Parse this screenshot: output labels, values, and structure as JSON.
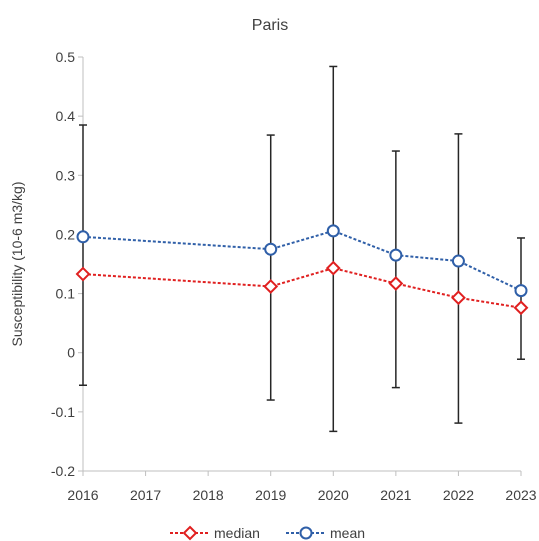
{
  "chart_data": {
    "type": "line",
    "title": "Paris",
    "xlabel": "",
    "ylabel": "Susceptibility (10-6 m3/kg)",
    "x_ticks": [
      "2016",
      "2017",
      "2018",
      "2019",
      "2020",
      "2021",
      "2022",
      "2023"
    ],
    "xlim": [
      2016,
      2023
    ],
    "ylim": [
      -0.2,
      0.5
    ],
    "y_ticks": [
      "-0.2",
      "-0.1",
      "0",
      "0.1",
      "0.2",
      "0.3",
      "0.4",
      "0.5"
    ],
    "grid": false,
    "legend_position": "bottom",
    "series": [
      {
        "name": "median",
        "color": "#e02020",
        "marker": "diamond",
        "line_style": "dashed",
        "points": [
          {
            "x": 2016,
            "y": 0.133
          },
          {
            "x": 2019,
            "y": 0.112
          },
          {
            "x": 2020,
            "y": 0.143
          },
          {
            "x": 2021,
            "y": 0.117
          },
          {
            "x": 2022,
            "y": 0.093
          },
          {
            "x": 2023,
            "y": 0.076
          }
        ]
      },
      {
        "name": "mean",
        "color": "#2f5fa8",
        "marker": "circle",
        "line_style": "dashed",
        "points": [
          {
            "x": 2016,
            "y": 0.196
          },
          {
            "x": 2019,
            "y": 0.175
          },
          {
            "x": 2020,
            "y": 0.206
          },
          {
            "x": 2021,
            "y": 0.165
          },
          {
            "x": 2022,
            "y": 0.155
          },
          {
            "x": 2023,
            "y": 0.105
          }
        ]
      }
    ],
    "error_bars": [
      {
        "x": 2016,
        "low": -0.055,
        "high": 0.385
      },
      {
        "x": 2019,
        "low": -0.08,
        "high": 0.368
      },
      {
        "x": 2020,
        "low": -0.133,
        "high": 0.484
      },
      {
        "x": 2021,
        "low": -0.059,
        "high": 0.341
      },
      {
        "x": 2022,
        "low": -0.119,
        "high": 0.37
      },
      {
        "x": 2023,
        "low": -0.011,
        "high": 0.194
      }
    ]
  }
}
